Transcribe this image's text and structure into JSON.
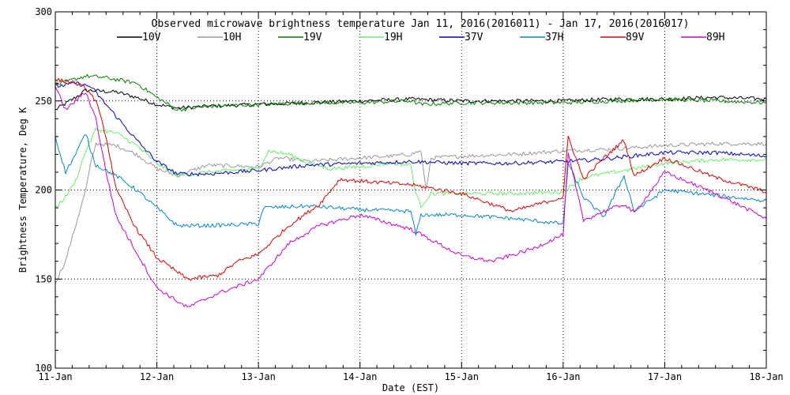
{
  "chart_data": {
    "type": "line",
    "title": "Observed microwave brightness temperature Jan 11, 2016(2016011) - Jan 17, 2016(2016017)",
    "xlabel": "Date (EST)",
    "ylabel": "Brightness Temperature, Deg K",
    "xlim": [
      0,
      7
    ],
    "ylim": [
      100,
      300
    ],
    "x_ticks": [
      {
        "v": 0,
        "label": "11-Jan"
      },
      {
        "v": 1,
        "label": "12-Jan"
      },
      {
        "v": 2,
        "label": "13-Jan"
      },
      {
        "v": 3,
        "label": "14-Jan"
      },
      {
        "v": 4,
        "label": "15-Jan"
      },
      {
        "v": 5,
        "label": "16-Jan"
      },
      {
        "v": 6,
        "label": "17-Jan"
      },
      {
        "v": 7,
        "label": "18-Jan"
      }
    ],
    "y_ticks": [
      {
        "v": 100,
        "label": "100"
      },
      {
        "v": 150,
        "label": "150"
      },
      {
        "v": 200,
        "label": "200"
      },
      {
        "v": 250,
        "label": "250"
      },
      {
        "v": 300,
        "label": "300"
      }
    ],
    "grid": "dotted, major ticks",
    "legend_position": "top, one row",
    "series": [
      {
        "name": "10V",
        "color": "#000000",
        "points": [
          [
            0,
            245
          ],
          [
            0.2,
            252
          ],
          [
            0.3,
            256
          ],
          [
            0.6,
            255
          ],
          [
            0.8,
            252
          ],
          [
            1,
            248
          ],
          [
            1.2,
            246
          ],
          [
            1.5,
            247
          ],
          [
            2,
            248
          ],
          [
            2.5,
            249
          ],
          [
            3,
            250
          ],
          [
            3.5,
            251
          ],
          [
            4,
            250
          ],
          [
            4.5,
            250
          ],
          [
            5,
            250
          ],
          [
            5.5,
            251
          ],
          [
            6,
            251
          ],
          [
            6.5,
            252
          ],
          [
            7,
            251
          ]
        ]
      },
      {
        "name": "10H",
        "color": "#999999",
        "points": [
          [
            0,
            148
          ],
          [
            0.1,
            160
          ],
          [
            0.2,
            180
          ],
          [
            0.3,
            200
          ],
          [
            0.35,
            215
          ],
          [
            0.4,
            226
          ],
          [
            0.6,
            225
          ],
          [
            0.8,
            220
          ],
          [
            1,
            212
          ],
          [
            1.2,
            208
          ],
          [
            1.5,
            214
          ],
          [
            2,
            213
          ],
          [
            2.2,
            218
          ],
          [
            2.5,
            216
          ],
          [
            3,
            218
          ],
          [
            3.3,
            219
          ],
          [
            3.5,
            220
          ],
          [
            3.6,
            222
          ],
          [
            3.65,
            200
          ],
          [
            3.7,
            218
          ],
          [
            4,
            219
          ],
          [
            4.5,
            220
          ],
          [
            5,
            222
          ],
          [
            5.5,
            223
          ],
          [
            6,
            225
          ],
          [
            6.5,
            226
          ],
          [
            7,
            226
          ]
        ]
      },
      {
        "name": "19V",
        "color": "#008000",
        "points": [
          [
            0,
            259
          ],
          [
            0.3,
            264
          ],
          [
            0.5,
            263
          ],
          [
            0.8,
            260
          ],
          [
            1,
            252
          ],
          [
            1.2,
            245
          ],
          [
            1.5,
            247
          ],
          [
            2,
            248
          ],
          [
            2.5,
            249
          ],
          [
            3,
            249
          ],
          [
            3.5,
            250
          ],
          [
            3.6,
            248
          ],
          [
            4,
            249
          ],
          [
            4.5,
            249
          ],
          [
            5,
            249
          ],
          [
            5.5,
            250
          ],
          [
            6,
            251
          ],
          [
            6.5,
            250
          ],
          [
            7,
            249
          ]
        ]
      },
      {
        "name": "19H",
        "color": "#66ee66",
        "points": [
          [
            0,
            190
          ],
          [
            0.1,
            196
          ],
          [
            0.2,
            205
          ],
          [
            0.3,
            222
          ],
          [
            0.4,
            234
          ],
          [
            0.6,
            232
          ],
          [
            0.8,
            225
          ],
          [
            1,
            215
          ],
          [
            1.2,
            208
          ],
          [
            1.5,
            210
          ],
          [
            2,
            212
          ],
          [
            2.1,
            222
          ],
          [
            2.3,
            220
          ],
          [
            2.5,
            215
          ],
          [
            2.7,
            212
          ],
          [
            3,
            213
          ],
          [
            3.3,
            215
          ],
          [
            3.5,
            214
          ],
          [
            3.55,
            198
          ],
          [
            3.6,
            191
          ],
          [
            3.7,
            198
          ],
          [
            4,
            198
          ],
          [
            4.5,
            198
          ],
          [
            5,
            199
          ],
          [
            5.2,
            207
          ],
          [
            5.5,
            210
          ],
          [
            6,
            215
          ],
          [
            6.5,
            217
          ],
          [
            7,
            217
          ]
        ]
      },
      {
        "name": "37V",
        "color": "#0000cc",
        "points": [
          [
            0,
            258
          ],
          [
            0.2,
            260
          ],
          [
            0.35,
            258
          ],
          [
            0.5,
            248
          ],
          [
            0.8,
            228
          ],
          [
            1,
            216
          ],
          [
            1.2,
            209
          ],
          [
            1.5,
            209
          ],
          [
            2,
            211
          ],
          [
            2.5,
            214
          ],
          [
            3,
            215
          ],
          [
            3.5,
            216
          ],
          [
            4,
            215
          ],
          [
            4.5,
            215
          ],
          [
            5,
            216
          ],
          [
            5.3,
            217
          ],
          [
            5.5,
            218
          ],
          [
            6,
            221
          ],
          [
            6.5,
            221
          ],
          [
            7,
            219
          ]
        ]
      },
      {
        "name": "37H",
        "color": "#0088cc",
        "points": [
          [
            0,
            230
          ],
          [
            0.1,
            210
          ],
          [
            0.2,
            220
          ],
          [
            0.3,
            232
          ],
          [
            0.35,
            222
          ],
          [
            0.4,
            214
          ],
          [
            0.6,
            208
          ],
          [
            0.8,
            200
          ],
          [
            1,
            190
          ],
          [
            1.2,
            180
          ],
          [
            1.5,
            180
          ],
          [
            2,
            181
          ],
          [
            2.05,
            190
          ],
          [
            2.5,
            191
          ],
          [
            3,
            189
          ],
          [
            3.5,
            188
          ],
          [
            3.55,
            175
          ],
          [
            3.6,
            186
          ],
          [
            4,
            186
          ],
          [
            4.5,
            184
          ],
          [
            5,
            181
          ],
          [
            5.05,
            215
          ],
          [
            5.2,
            196
          ],
          [
            5.4,
            185
          ],
          [
            5.6,
            208
          ],
          [
            5.7,
            188
          ],
          [
            6,
            200
          ],
          [
            6.5,
            197
          ],
          [
            7,
            194
          ]
        ]
      },
      {
        "name": "89V",
        "color": "#dd0000",
        "points": [
          [
            0,
            262
          ],
          [
            0.2,
            260
          ],
          [
            0.3,
            257
          ],
          [
            0.4,
            250
          ],
          [
            0.5,
            230
          ],
          [
            0.6,
            200
          ],
          [
            0.8,
            178
          ],
          [
            1,
            162
          ],
          [
            1.3,
            150
          ],
          [
            1.6,
            152
          ],
          [
            1.8,
            160
          ],
          [
            2,
            164
          ],
          [
            2.3,
            180
          ],
          [
            2.6,
            192
          ],
          [
            2.8,
            206
          ],
          [
            3,
            205
          ],
          [
            3.5,
            203
          ],
          [
            4,
            198
          ],
          [
            4.5,
            188
          ],
          [
            5,
            196
          ],
          [
            5.05,
            230
          ],
          [
            5.2,
            206
          ],
          [
            5.4,
            218
          ],
          [
            5.6,
            228
          ],
          [
            5.7,
            208
          ],
          [
            6,
            218
          ],
          [
            6.5,
            207
          ],
          [
            7,
            199
          ]
        ]
      },
      {
        "name": "89H",
        "color": "#cc00cc",
        "points": [
          [
            0,
            258
          ],
          [
            0.1,
            245
          ],
          [
            0.2,
            250
          ],
          [
            0.3,
            255
          ],
          [
            0.4,
            240
          ],
          [
            0.5,
            210
          ],
          [
            0.6,
            185
          ],
          [
            0.8,
            165
          ],
          [
            1,
            145
          ],
          [
            1.3,
            134
          ],
          [
            1.6,
            142
          ],
          [
            2,
            150
          ],
          [
            2.3,
            170
          ],
          [
            2.6,
            180
          ],
          [
            3,
            186
          ],
          [
            3.5,
            178
          ],
          [
            4,
            163
          ],
          [
            4.3,
            160
          ],
          [
            4.7,
            167
          ],
          [
            5,
            175
          ],
          [
            5.05,
            220
          ],
          [
            5.2,
            183
          ],
          [
            5.4,
            188
          ],
          [
            5.6,
            192
          ],
          [
            5.7,
            187
          ],
          [
            6,
            210
          ],
          [
            6.5,
            198
          ],
          [
            7,
            184
          ]
        ]
      }
    ]
  }
}
